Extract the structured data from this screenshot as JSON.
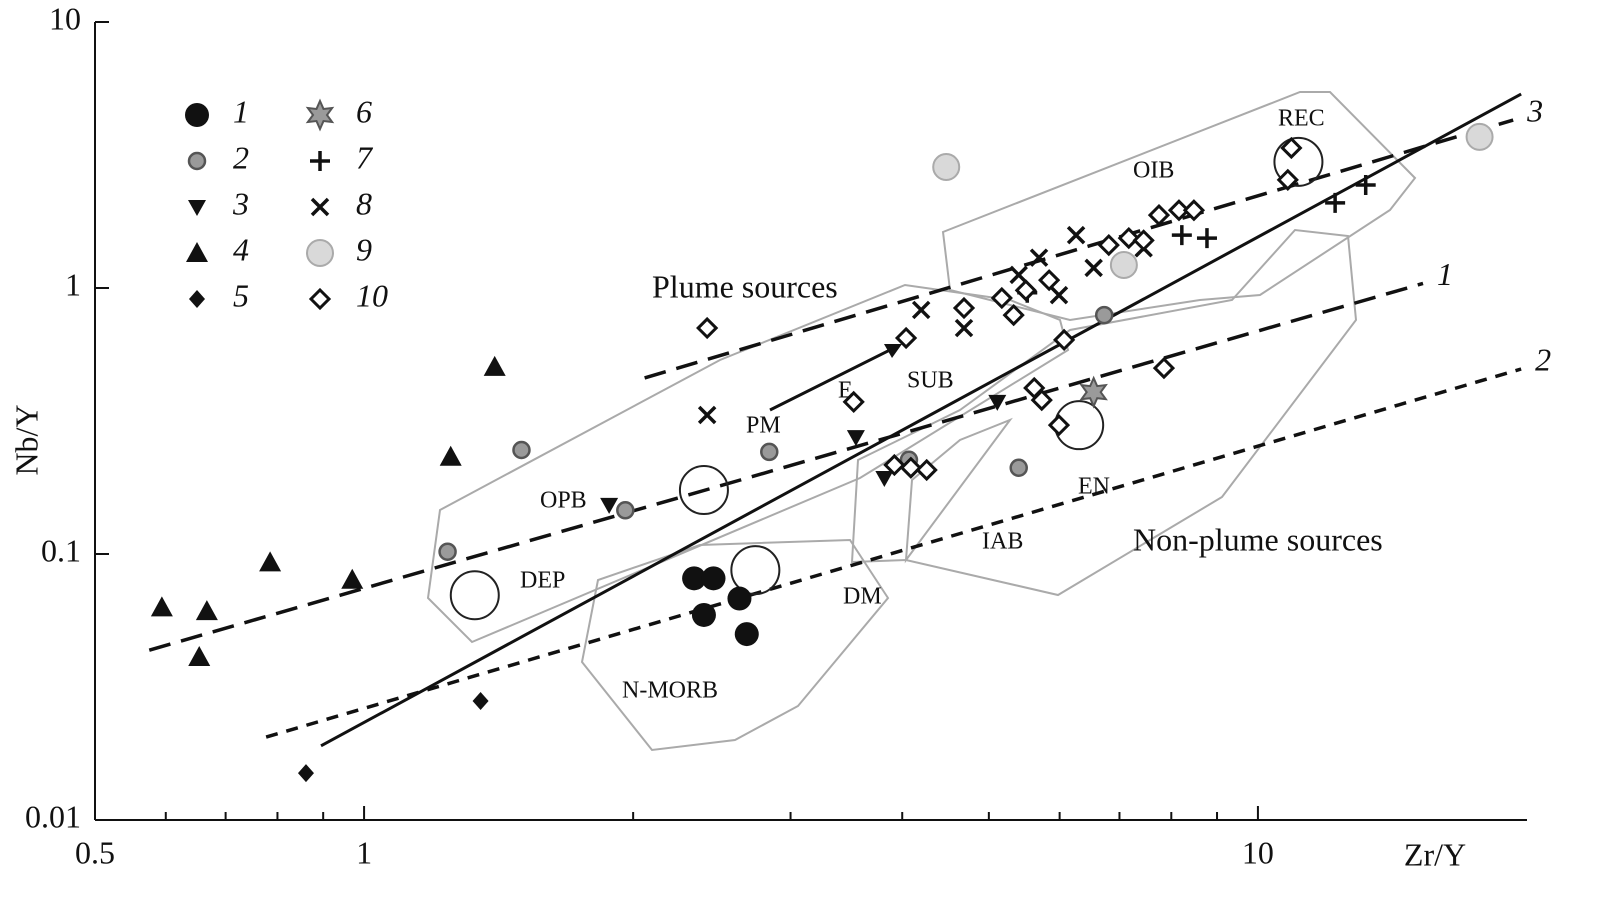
{
  "chart_data": {
    "type": "scatter",
    "xlabel": "Zr/Y",
    "ylabel": "Nb/Y",
    "log_x": true,
    "log_y": true,
    "xlim": [
      0.5,
      20
    ],
    "ylim": [
      0.01,
      10
    ],
    "xticks": [
      0.5,
      1,
      10
    ],
    "xminor_ticks": [
      0.6,
      0.7,
      0.8,
      0.9,
      2,
      3,
      4,
      5,
      6,
      7,
      8,
      9
    ],
    "yticks": [
      0.01,
      0.1,
      1,
      10
    ],
    "series": [
      {
        "name": "1",
        "marker": "circle",
        "color": "#111111",
        "x": [
          2.34,
          2.46,
          2.4,
          2.63,
          2.68
        ],
        "values": [
          0.081,
          0.081,
          0.059,
          0.068,
          0.05
        ]
      },
      {
        "name": "2",
        "marker": "small-circle",
        "color": "#9a9a9a",
        "x": [
          1.24,
          1.5,
          1.96,
          2.84,
          4.07,
          5.4,
          6.73
        ],
        "values": [
          0.102,
          0.246,
          0.146,
          0.242,
          0.226,
          0.211,
          0.791
        ]
      },
      {
        "name": "3",
        "marker": "down-triangle",
        "color": "#111111",
        "x": [
          1.88,
          3.55,
          5.11,
          3.82
        ],
        "values": [
          0.153,
          0.275,
          0.373,
          0.193
        ]
      },
      {
        "name": "4",
        "marker": "triangle",
        "color": "#111111",
        "x": [
          0.594,
          0.667,
          0.654,
          0.785,
          0.97,
          1.25,
          1.4
        ],
        "values": [
          0.063,
          0.061,
          0.041,
          0.093,
          0.08,
          0.232,
          0.505
        ]
      },
      {
        "name": "5",
        "marker": "diamond",
        "color": "#111111",
        "x": [
          1.35,
          0.861
        ],
        "values": [
          0.028,
          0.015
        ]
      },
      {
        "name": "6",
        "marker": "star",
        "color": "#9a9a9a",
        "x": [
          6.55
        ],
        "values": [
          0.406
        ]
      },
      {
        "name": "7",
        "marker": "plus",
        "color": "#111111",
        "x": [
          5.52,
          8.22,
          8.77,
          12.2,
          13.2
        ],
        "values": [
          0.96,
          1.58,
          1.54,
          2.09,
          2.44
        ]
      },
      {
        "name": "8",
        "marker": "cross",
        "color": "#111111",
        "x": [
          2.42,
          4.2,
          4.69,
          5.69,
          5.99,
          6.26,
          6.55,
          7.45,
          5.4
        ],
        "values": [
          0.333,
          0.827,
          0.707,
          1.3,
          0.94,
          1.58,
          1.19,
          1.41,
          1.12
        ]
      },
      {
        "name": "9",
        "marker": "big-circle",
        "color": "#d9d9d9",
        "x": [
          4.48,
          7.08,
          17.7
        ],
        "values": [
          2.85,
          1.22,
          3.7
        ]
      },
      {
        "name": "10",
        "marker": "open-diamond",
        "color": "#111111",
        "x": [
          2.42,
          4.04,
          3.53,
          4.69,
          5.17,
          5.33,
          5.5,
          5.84,
          6.07,
          5.62,
          5.73,
          5.99,
          7.85,
          6.81,
          7.17,
          7.45,
          7.75,
          8.16,
          8.48,
          10.9,
          10.8,
          3.92,
          4.09,
          4.26
        ],
        "values": [
          0.707,
          0.649,
          0.373,
          0.841,
          0.917,
          0.791,
          0.98,
          1.07,
          0.638,
          0.421,
          0.379,
          0.305,
          0.5,
          1.45,
          1.54,
          1.51,
          1.88,
          1.96,
          1.96,
          3.36,
          2.55,
          0.216,
          0.211,
          0.207
        ]
      }
    ],
    "reference_points": {
      "x": [
        1.33,
        2.4,
        2.74,
        6.31,
        11.1
      ],
      "values": [
        0.07,
        0.174,
        0.087,
        0.305,
        2.98
      ]
    },
    "lines": [
      {
        "style": "solid",
        "x": [
          0.895,
          19.7
        ],
        "values": [
          0.019,
          5.36
        ]
      },
      {
        "name": "3",
        "style": "long-dash",
        "x": [
          2.06,
          19.3
        ],
        "values": [
          0.459,
          4.28
        ]
      },
      {
        "name": "1",
        "style": "long-dash",
        "x": [
          0.575,
          15.3
        ],
        "values": [
          0.0435,
          1.04
        ]
      },
      {
        "name": "2",
        "style": "short-dash",
        "x": [
          0.777,
          19.7
        ],
        "values": [
          0.0205,
          0.496
        ]
      }
    ],
    "annotations": [
      "Plume sources",
      "Non-plume sources",
      "OIB",
      "REC",
      "SUB",
      "E",
      "PM",
      "OPB",
      "DEP",
      "EN",
      "IAB",
      "DM",
      "N-MORB"
    ]
  }
}
